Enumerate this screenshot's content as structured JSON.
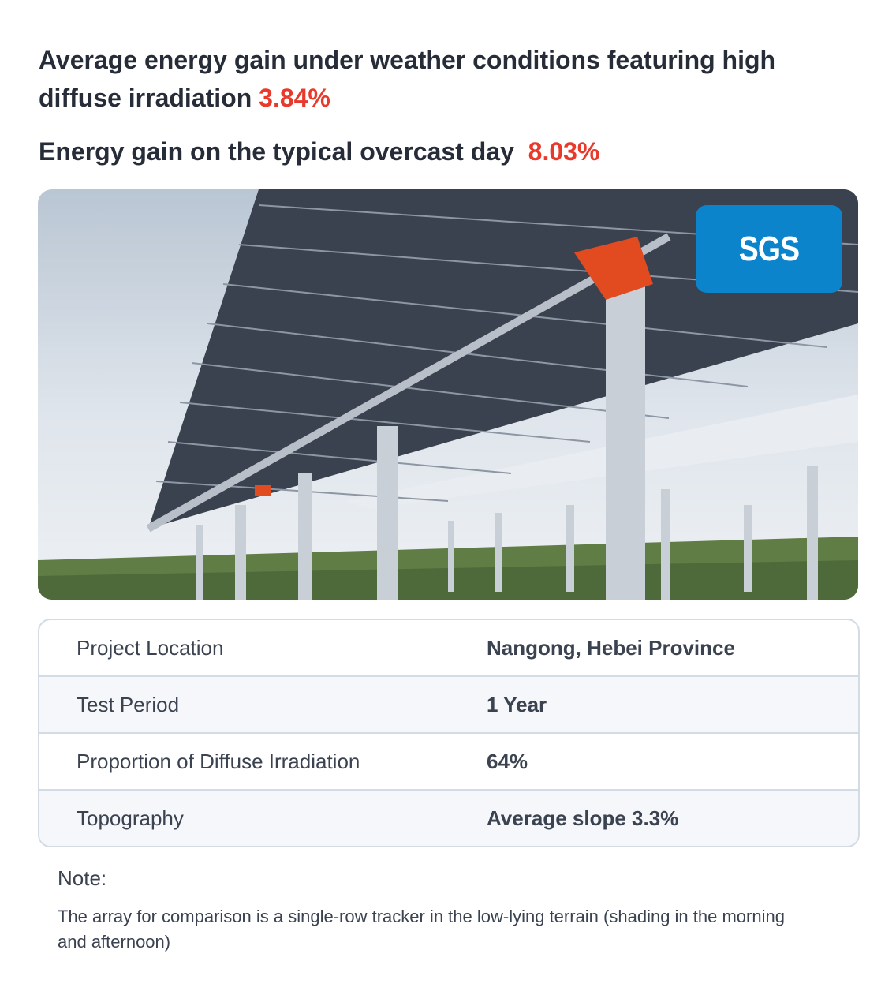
{
  "headline": {
    "line1_text": "Average energy gain under weather conditions featuring high diffuse irradiation",
    "line1_value": "3.84%",
    "line2_text": "Energy gain on the typical overcast day",
    "line2_value": "8.03%",
    "accent_color": "#e8392b"
  },
  "photo": {
    "logo_text": "SGS",
    "logo_color": "#0b84cc"
  },
  "specs": [
    {
      "label": "Project Location",
      "value": "Nangong, Hebei Province"
    },
    {
      "label": "Test Period",
      "value": "1 Year"
    },
    {
      "label": "Proportion of Diffuse Irradiation",
      "value": "64%"
    },
    {
      "label": "Topography",
      "value": "Average slope 3.3%"
    }
  ],
  "note": {
    "title": "Note:",
    "text": "The array for comparison is a single-row tracker in the low-lying terrain (shading in the morning and afternoon)"
  }
}
